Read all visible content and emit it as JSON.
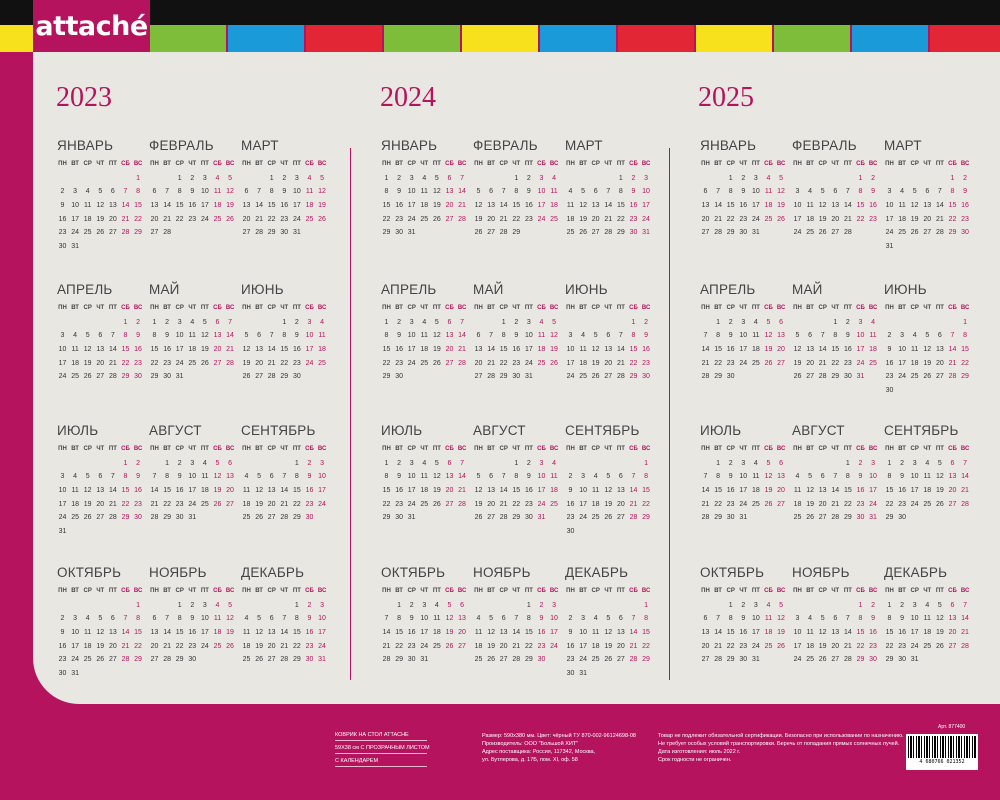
{
  "brand": {
    "logo_text": "attaché",
    "accent": "#b5135e"
  },
  "tab_colors": [
    "#f7e11c",
    "#7dbd3a",
    "#1a9ad9",
    "#e32636",
    "#7dbd3a",
    "#f7e11c",
    "#1a9ad9",
    "#e32636",
    "#f7e11c",
    "#7dbd3a",
    "#1a9ad9",
    "#e32636"
  ],
  "weekday_headers": [
    "ПН",
    "ВТ",
    "СР",
    "ЧТ",
    "ПТ",
    "СБ",
    "ВС"
  ],
  "month_names": [
    "ЯНВАРЬ",
    "ФЕВРАЛЬ",
    "МАРТ",
    "АПРЕЛЬ",
    "МАЙ",
    "ИЮНЬ",
    "ИЮЛЬ",
    "АВГУСТ",
    "СЕНТЯБРЬ",
    "ОКТЯБРЬ",
    "НОЯБРЬ",
    "ДЕКАБРЬ"
  ],
  "years": [
    2023,
    2024,
    2025
  ],
  "footer": {
    "product_lines": [
      "КОВРИК НА СТОЛ ATTACHE",
      "59Х38 см С ПРОЗРАЧНЫМ ЛИСТОМ",
      "С КАЛЕНДАРЕМ"
    ],
    "info_lines": [
      "Размер: 590х380 мм. Цвет: чёрный ТУ 870-002-96124698-08",
      "Производитель: ООО \"Большой ХИТ\"",
      "Адрес поставщика: Россия, 117342, Москва,",
      "ул. Бутлерова, д. 17Б, пом. XI, оф. 58"
    ],
    "notes_lines": [
      "Товар не подлежит обязательной сертификации. Безопасно при использовании по назначению.",
      "Не требует особых условий транспортировки. Беречь от попадания прямых солнечных лучей.",
      "Дата изготовления: июль 2022 г.",
      "Срок годности не ограничен."
    ],
    "article": "Арт. 877400",
    "barcode_number": "4 680766 021352"
  }
}
